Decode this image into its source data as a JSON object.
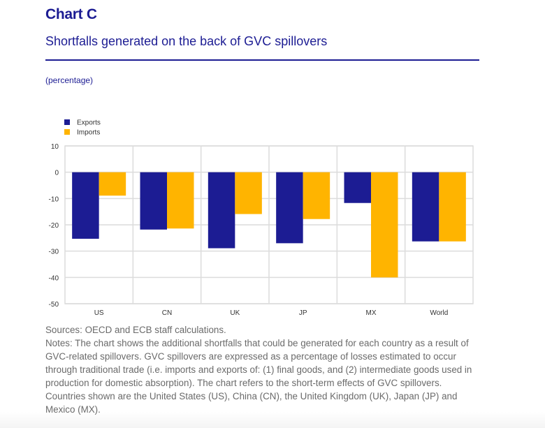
{
  "header": {
    "title": "Chart C",
    "subtitle": "Shortfalls generated on the back of GVC spillovers",
    "unit": "(percentage)"
  },
  "chart_data": {
    "type": "bar",
    "title": "Shortfalls generated on the back of GVC spillovers",
    "xlabel": "",
    "ylabel": "(percentage)",
    "categories": [
      "US",
      "CN",
      "UK",
      "JP",
      "MX",
      "World"
    ],
    "series": [
      {
        "name": "Exports",
        "color": "#1c1c93",
        "values": [
          -25.3,
          -21.8,
          -28.9,
          -27.0,
          -11.7,
          -26.3
        ]
      },
      {
        "name": "Imports",
        "color": "#ffb400",
        "values": [
          -8.9,
          -21.4,
          -15.9,
          -17.8,
          -40.0,
          -26.3
        ]
      }
    ],
    "ylim": [
      -50,
      10
    ],
    "yticks": [
      10,
      0,
      -10,
      -20,
      -30,
      -40,
      -50
    ],
    "grid": true,
    "legend_position": "top-left"
  },
  "footer": {
    "sources": "Sources: OECD and ECB staff calculations.",
    "notes": "Notes: The chart shows the additional shortfalls that could be generated for each country as a result of GVC-related spillovers. GVC spillovers are expressed as a percentage of losses estimated to occur through traditional trade (i.e. imports and exports of: (1) final goods, and (2) intermediate goods used in production for domestic absorption). The chart refers to the short-term effects of GVC spillovers. Countries shown are the United States (US), China (CN), the United Kingdom (UK), Japan (JP) and Mexico (MX)."
  }
}
